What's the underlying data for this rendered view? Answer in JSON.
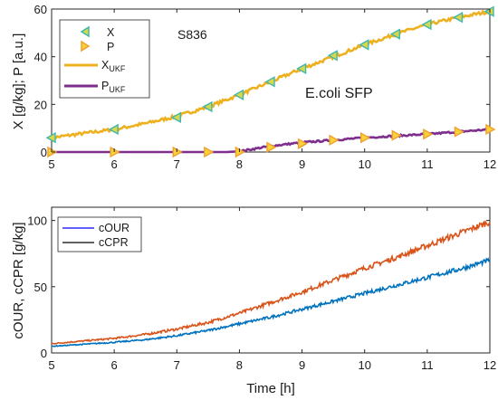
{
  "chart_data": [
    {
      "type": "line",
      "ylabel": "X [g/kg]; P [a.u.]",
      "xlabel": "",
      "xlim": [
        5,
        12
      ],
      "ylim": [
        0,
        60
      ],
      "xticks": [
        "5",
        "6",
        "7",
        "8",
        "9",
        "10",
        "11",
        "12"
      ],
      "yticks": [
        "0",
        "20",
        "40",
        "60"
      ],
      "grid": false,
      "legend_position": "top-left",
      "annotations": [
        "S836",
        "E.coli SFP"
      ],
      "legend": [
        {
          "label": "X",
          "marker": "triangle-left",
          "color": "#3fb6b0",
          "fill": "#d8d84a"
        },
        {
          "label": "P",
          "marker": "triangle-right",
          "color": "#f0a030",
          "fill": "#f7d33a"
        },
        {
          "label": "X",
          "subscript": "UKF",
          "line": true,
          "color": "#edb120"
        },
        {
          "label": "P",
          "subscript": "UKF",
          "line": true,
          "color": "#7e2f8e"
        }
      ],
      "series": [
        {
          "name": "X",
          "kind": "markers",
          "x": [
            5,
            6,
            7,
            7.5,
            8,
            8.5,
            9,
            9.5,
            10,
            10.5,
            11,
            11.5,
            12
          ],
          "y": [
            6,
            9.5,
            14.5,
            19,
            24,
            29.5,
            35,
            40.5,
            45,
            49.5,
            53.5,
            56.5,
            59
          ]
        },
        {
          "name": "P",
          "kind": "markers",
          "x": [
            5,
            6,
            7,
            7.5,
            8,
            8.5,
            9,
            9.5,
            10,
            10.5,
            11,
            11.5,
            12
          ],
          "y": [
            0,
            0,
            0,
            0,
            0,
            2,
            3.5,
            5,
            6,
            7,
            7.5,
            8.5,
            9.5
          ]
        },
        {
          "name": "X_UKF",
          "kind": "line",
          "x": [
            5,
            5.5,
            6,
            6.5,
            7,
            7.5,
            8,
            8.5,
            9,
            9.5,
            10,
            10.5,
            11,
            11.5,
            12
          ],
          "y": [
            6,
            7.8,
            9.5,
            12,
            15,
            19,
            24,
            29.5,
            35,
            40,
            45,
            49.5,
            53.5,
            56.5,
            59
          ]
        },
        {
          "name": "P_UKF",
          "kind": "line",
          "x": [
            5,
            6,
            7,
            7.8,
            8,
            8.5,
            9,
            9.5,
            10,
            10.5,
            11,
            11.5,
            12
          ],
          "y": [
            0,
            0,
            0,
            0,
            0.3,
            2.5,
            4,
            5,
            6,
            6.8,
            7.5,
            8.5,
            9.5
          ]
        }
      ]
    },
    {
      "type": "line",
      "ylabel": "cOUR, cCPR [g/kg]",
      "xlabel": "Time [h]",
      "xlim": [
        5,
        12
      ],
      "ylim": [
        0,
        110
      ],
      "xticks": [
        "5",
        "6",
        "7",
        "8",
        "9",
        "10",
        "11",
        "12"
      ],
      "yticks": [
        "0",
        "50",
        "100"
      ],
      "grid": false,
      "legend_position": "top-left",
      "legend": [
        {
          "label": "cOUR",
          "color": "#0000ff"
        },
        {
          "label": "cCPR",
          "color": "#000000"
        }
      ],
      "series": [
        {
          "name": "cCPR",
          "color": "#d95319",
          "x": [
            5,
            5.5,
            6,
            6.5,
            7,
            7.5,
            8,
            8.5,
            9,
            9.5,
            10,
            10.5,
            11,
            11.5,
            12
          ],
          "y": [
            7,
            9,
            11,
            14,
            18,
            23,
            30,
            38,
            46,
            55,
            64,
            72,
            81,
            90,
            99
          ]
        },
        {
          "name": "cOUR",
          "color": "#0072bd",
          "x": [
            5,
            5.5,
            6,
            6.5,
            7,
            7.5,
            8,
            8.5,
            9,
            9.5,
            10,
            10.5,
            11,
            11.5,
            12
          ],
          "y": [
            5,
            6.5,
            8,
            10,
            13,
            17,
            22,
            27,
            33,
            39,
            45,
            51,
            57,
            63,
            70
          ]
        }
      ]
    }
  ]
}
